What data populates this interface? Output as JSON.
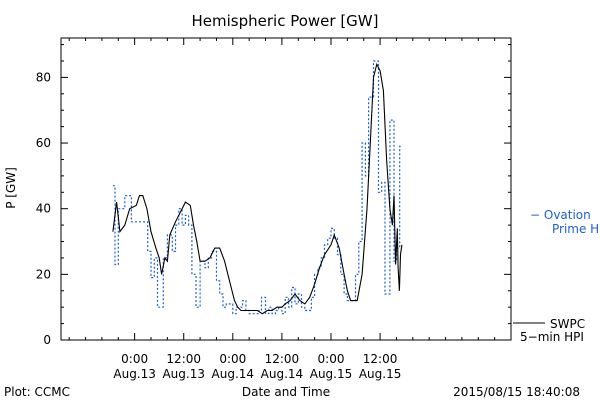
{
  "chart_data": {
    "type": "line",
    "title": "Hemispheric Power [GW]",
    "xlabel": "Date and Time",
    "ylabel": "P [GW]",
    "ylim": [
      0,
      92
    ],
    "xlim": [
      -4.5,
      23
    ],
    "yticks": [
      0,
      20,
      40,
      60,
      80
    ],
    "xticks": [
      {
        "x": 0,
        "time": "0:00",
        "date": "Aug.13"
      },
      {
        "x": 3,
        "time": "12:00",
        "date": "Aug.13"
      },
      {
        "x": 6,
        "time": "0:00",
        "date": "Aug.14"
      },
      {
        "x": 9,
        "time": "12:00",
        "date": "Aug.14"
      },
      {
        "x": 12,
        "time": "0:00",
        "date": "Aug.15"
      },
      {
        "x": 15,
        "time": "12:00",
        "date": "Aug.15"
      }
    ],
    "series": [
      {
        "name": "Ovation Prime HPI",
        "style": "dashed-step",
        "color": "#1f5fd6",
        "points": [
          [
            -1.33,
            47
          ],
          [
            -1.2,
            23
          ],
          [
            -1.0,
            40
          ],
          [
            -0.6,
            44
          ],
          [
            -0.2,
            36
          ],
          [
            0.25,
            36
          ],
          [
            0.8,
            27
          ],
          [
            1.0,
            19
          ],
          [
            1.2,
            25
          ],
          [
            1.4,
            10
          ],
          [
            1.75,
            25
          ],
          [
            2.0,
            32
          ],
          [
            2.3,
            27
          ],
          [
            2.5,
            35
          ],
          [
            2.7,
            40
          ],
          [
            2.9,
            35
          ],
          [
            3.1,
            38
          ],
          [
            3.3,
            35
          ],
          [
            3.5,
            20
          ],
          [
            3.75,
            10
          ],
          [
            4.0,
            24
          ],
          [
            4.3,
            22
          ],
          [
            4.5,
            25
          ],
          [
            4.7,
            27
          ],
          [
            5.0,
            18
          ],
          [
            5.2,
            14
          ],
          [
            5.4,
            10
          ],
          [
            5.6,
            11
          ],
          [
            6.0,
            8
          ],
          [
            6.2,
            10
          ],
          [
            6.6,
            12
          ],
          [
            6.8,
            9
          ],
          [
            7.0,
            8
          ],
          [
            7.6,
            9
          ],
          [
            7.75,
            13
          ],
          [
            8.0,
            8
          ],
          [
            8.2,
            10
          ],
          [
            8.4,
            8
          ],
          [
            8.6,
            9
          ],
          [
            8.8,
            10
          ],
          [
            9.0,
            8
          ],
          [
            9.2,
            13
          ],
          [
            9.4,
            10
          ],
          [
            9.6,
            16
          ],
          [
            9.8,
            11
          ],
          [
            10.0,
            14
          ],
          [
            10.2,
            10
          ],
          [
            10.4,
            9
          ],
          [
            10.8,
            13
          ],
          [
            11.0,
            20
          ],
          [
            11.2,
            22
          ],
          [
            11.4,
            25
          ],
          [
            11.6,
            29
          ],
          [
            11.8,
            31
          ],
          [
            12.0,
            34
          ],
          [
            12.2,
            31
          ],
          [
            12.4,
            26
          ],
          [
            12.6,
            20
          ],
          [
            12.8,
            14
          ],
          [
            13.0,
            12
          ],
          [
            13.5,
            20
          ],
          [
            13.7,
            30
          ],
          [
            13.9,
            60
          ],
          [
            14.1,
            50
          ],
          [
            14.3,
            74
          ],
          [
            14.6,
            85
          ],
          [
            14.9,
            45
          ],
          [
            15.1,
            48
          ],
          [
            15.3,
            14
          ],
          [
            15.6,
            67
          ],
          [
            15.85,
            24
          ],
          [
            16.0,
            28
          ],
          [
            16.2,
            59
          ],
          [
            16.33,
            59
          ]
        ]
      },
      {
        "name": "SWPC 5-min HPI",
        "style": "solid",
        "color": "#000000",
        "points": [
          [
            -1.33,
            33
          ],
          [
            -1.1,
            42
          ],
          [
            -0.9,
            33
          ],
          [
            -0.6,
            35
          ],
          [
            -0.3,
            40
          ],
          [
            0.1,
            41
          ],
          [
            0.3,
            44
          ],
          [
            0.5,
            44
          ],
          [
            0.75,
            40
          ],
          [
            1.0,
            33
          ],
          [
            1.3,
            28
          ],
          [
            1.5,
            25
          ],
          [
            1.65,
            20
          ],
          [
            1.85,
            25
          ],
          [
            2.0,
            24
          ],
          [
            2.15,
            32
          ],
          [
            2.5,
            36
          ],
          [
            2.9,
            40
          ],
          [
            3.1,
            42
          ],
          [
            3.4,
            41
          ],
          [
            3.6,
            35
          ],
          [
            3.8,
            30
          ],
          [
            4.0,
            24
          ],
          [
            4.3,
            24
          ],
          [
            4.6,
            25
          ],
          [
            4.9,
            28
          ],
          [
            5.2,
            28
          ],
          [
            5.5,
            24
          ],
          [
            5.8,
            18
          ],
          [
            6.1,
            12
          ],
          [
            6.3,
            10
          ],
          [
            6.5,
            9
          ],
          [
            6.8,
            9
          ],
          [
            7.2,
            9
          ],
          [
            7.5,
            9
          ],
          [
            7.8,
            8
          ],
          [
            8.1,
            9
          ],
          [
            8.4,
            9
          ],
          [
            8.7,
            10
          ],
          [
            9.0,
            10
          ],
          [
            9.2,
            11
          ],
          [
            9.5,
            12
          ],
          [
            9.8,
            14
          ],
          [
            10.1,
            12
          ],
          [
            10.4,
            11
          ],
          [
            10.7,
            13
          ],
          [
            11.0,
            17
          ],
          [
            11.3,
            22
          ],
          [
            11.6,
            26
          ],
          [
            12.0,
            29
          ],
          [
            12.2,
            32
          ],
          [
            12.5,
            28
          ],
          [
            12.8,
            20
          ],
          [
            13.0,
            15
          ],
          [
            13.2,
            12
          ],
          [
            13.6,
            12
          ],
          [
            13.9,
            20
          ],
          [
            14.2,
            40
          ],
          [
            14.4,
            60
          ],
          [
            14.6,
            80
          ],
          [
            14.8,
            84
          ],
          [
            15.0,
            82
          ],
          [
            15.2,
            76
          ],
          [
            15.4,
            55
          ],
          [
            15.6,
            40
          ],
          [
            15.75,
            35
          ],
          [
            15.85,
            44
          ],
          [
            15.95,
            23
          ],
          [
            16.05,
            34
          ],
          [
            16.1,
            22
          ],
          [
            16.18,
            15
          ],
          [
            16.25,
            26
          ],
          [
            16.33,
            29
          ]
        ]
      }
    ],
    "legend": [
      {
        "text": "− Ovation",
        "text2": "Prime HPI",
        "color": "#1f5fd6"
      },
      {
        "text": "SWPC",
        "text2": "5−min HPI",
        "color": "#000000"
      }
    ],
    "legend_placement": "right",
    "grid": false
  },
  "footer": {
    "left": "Plot: CCMC",
    "right": "2015/08/15 18:40:08"
  }
}
